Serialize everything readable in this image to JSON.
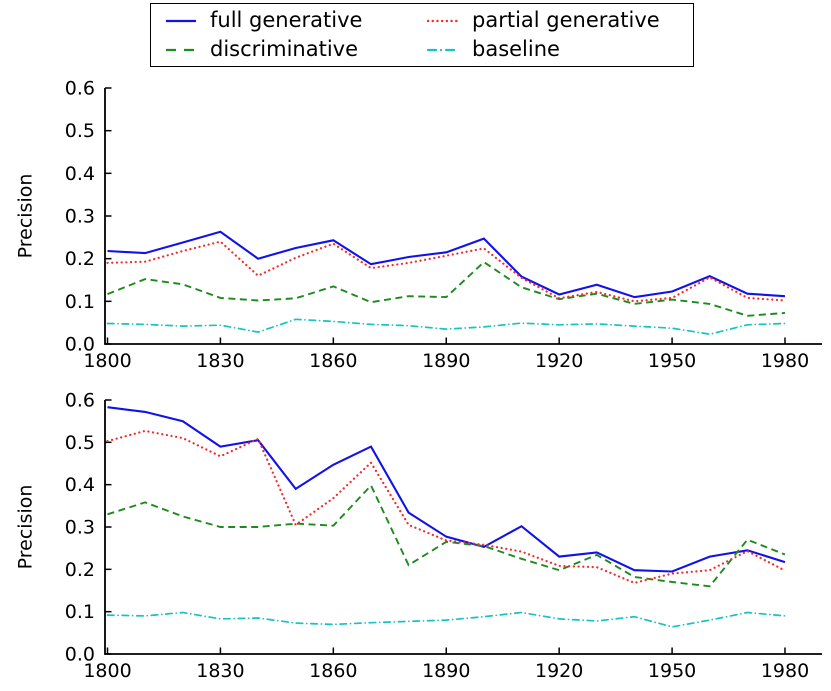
{
  "figure": {
    "background": "#ffffff",
    "text_color": "#000000",
    "axis_color": "#000000"
  },
  "chart_data": [
    {
      "type": "line",
      "title": "",
      "xlabel": "",
      "ylabel": "Precision",
      "ylim": [
        0.0,
        0.6
      ],
      "xlim": [
        1799,
        1990
      ],
      "grid": false,
      "legend_position": "above-top, 2 columns, framed",
      "x": [
        1800,
        1810,
        1820,
        1830,
        1840,
        1850,
        1860,
        1870,
        1880,
        1890,
        1900,
        1910,
        1920,
        1930,
        1940,
        1950,
        1960,
        1970,
        1980
      ],
      "x_ticks": [
        1800,
        1830,
        1860,
        1890,
        1920,
        1950,
        1980
      ],
      "x_tick_labels": [
        "1800",
        "1830",
        "1860",
        "1890",
        "1920",
        "1950",
        "1980"
      ],
      "y_ticks": [
        0.0,
        0.1,
        0.2,
        0.3,
        0.4,
        0.5,
        0.6
      ],
      "y_tick_labels": [
        "0.0",
        "0.1",
        "0.2",
        "0.3",
        "0.4",
        "0.5",
        "0.6"
      ],
      "series": [
        {
          "name": "full generative",
          "color": "#1212e8",
          "style": "solid",
          "values": [
            0.218,
            0.213,
            0.238,
            0.263,
            0.2,
            0.225,
            0.243,
            0.187,
            0.204,
            0.215,
            0.247,
            0.158,
            0.116,
            0.139,
            0.11,
            0.123,
            0.159,
            0.118,
            0.112
          ]
        },
        {
          "name": "discriminative",
          "color": "#1d8a1d",
          "style": "dashed",
          "values": [
            0.117,
            0.152,
            0.14,
            0.108,
            0.102,
            0.107,
            0.135,
            0.098,
            0.112,
            0.11,
            0.192,
            0.133,
            0.105,
            0.118,
            0.094,
            0.104,
            0.094,
            0.066,
            0.073
          ]
        },
        {
          "name": "partial generative",
          "color": "#f32b2b",
          "style": "dotted",
          "values": [
            0.19,
            0.193,
            0.218,
            0.24,
            0.16,
            0.202,
            0.235,
            0.178,
            0.19,
            0.207,
            0.224,
            0.155,
            0.107,
            0.122,
            0.1,
            0.108,
            0.156,
            0.108,
            0.102
          ]
        },
        {
          "name": "baseline",
          "color": "#17c3c3",
          "style": "dashdot",
          "values": [
            0.048,
            0.046,
            0.042,
            0.044,
            0.028,
            0.058,
            0.053,
            0.046,
            0.043,
            0.035,
            0.04,
            0.049,
            0.045,
            0.047,
            0.042,
            0.037,
            0.023,
            0.045,
            0.048
          ]
        }
      ]
    },
    {
      "type": "line",
      "title": "",
      "xlabel": "",
      "ylabel": "Precision",
      "ylim": [
        0.0,
        0.6
      ],
      "xlim": [
        1799,
        1990
      ],
      "grid": false,
      "x": [
        1800,
        1810,
        1820,
        1830,
        1840,
        1850,
        1860,
        1870,
        1880,
        1890,
        1900,
        1910,
        1920,
        1930,
        1940,
        1950,
        1960,
        1970,
        1980
      ],
      "x_ticks": [
        1800,
        1830,
        1860,
        1890,
        1920,
        1950,
        1980
      ],
      "x_tick_labels": [
        "1800",
        "1830",
        "1860",
        "1890",
        "1920",
        "1950",
        "1980"
      ],
      "y_ticks": [
        0.0,
        0.1,
        0.2,
        0.3,
        0.4,
        0.5,
        0.6
      ],
      "y_tick_labels": [
        "0.0",
        "0.1",
        "0.2",
        "0.3",
        "0.4",
        "0.5",
        "0.6"
      ],
      "series": [
        {
          "name": "full generative",
          "color": "#1212e8",
          "style": "solid",
          "values": [
            0.583,
            0.572,
            0.55,
            0.49,
            0.505,
            0.39,
            0.447,
            0.49,
            0.334,
            0.277,
            0.253,
            0.302,
            0.23,
            0.24,
            0.198,
            0.195,
            0.23,
            0.245,
            0.217
          ]
        },
        {
          "name": "discriminative",
          "color": "#1d8a1d",
          "style": "dashed",
          "values": [
            0.33,
            0.358,
            0.325,
            0.3,
            0.3,
            0.308,
            0.303,
            0.398,
            0.21,
            0.265,
            0.255,
            0.225,
            0.198,
            0.234,
            0.182,
            0.17,
            0.16,
            0.27,
            0.235
          ]
        },
        {
          "name": "partial generative",
          "color": "#f32b2b",
          "style": "dotted",
          "values": [
            0.503,
            0.527,
            0.51,
            0.467,
            0.508,
            0.305,
            0.368,
            0.452,
            0.305,
            0.268,
            0.258,
            0.242,
            0.208,
            0.205,
            0.168,
            0.19,
            0.198,
            0.243,
            0.197
          ]
        },
        {
          "name": "baseline",
          "color": "#17c3c3",
          "style": "dashdot",
          "values": [
            0.092,
            0.09,
            0.098,
            0.083,
            0.085,
            0.073,
            0.07,
            0.074,
            0.077,
            0.08,
            0.088,
            0.098,
            0.083,
            0.078,
            0.088,
            0.064,
            0.08,
            0.098,
            0.09
          ]
        }
      ]
    }
  ]
}
